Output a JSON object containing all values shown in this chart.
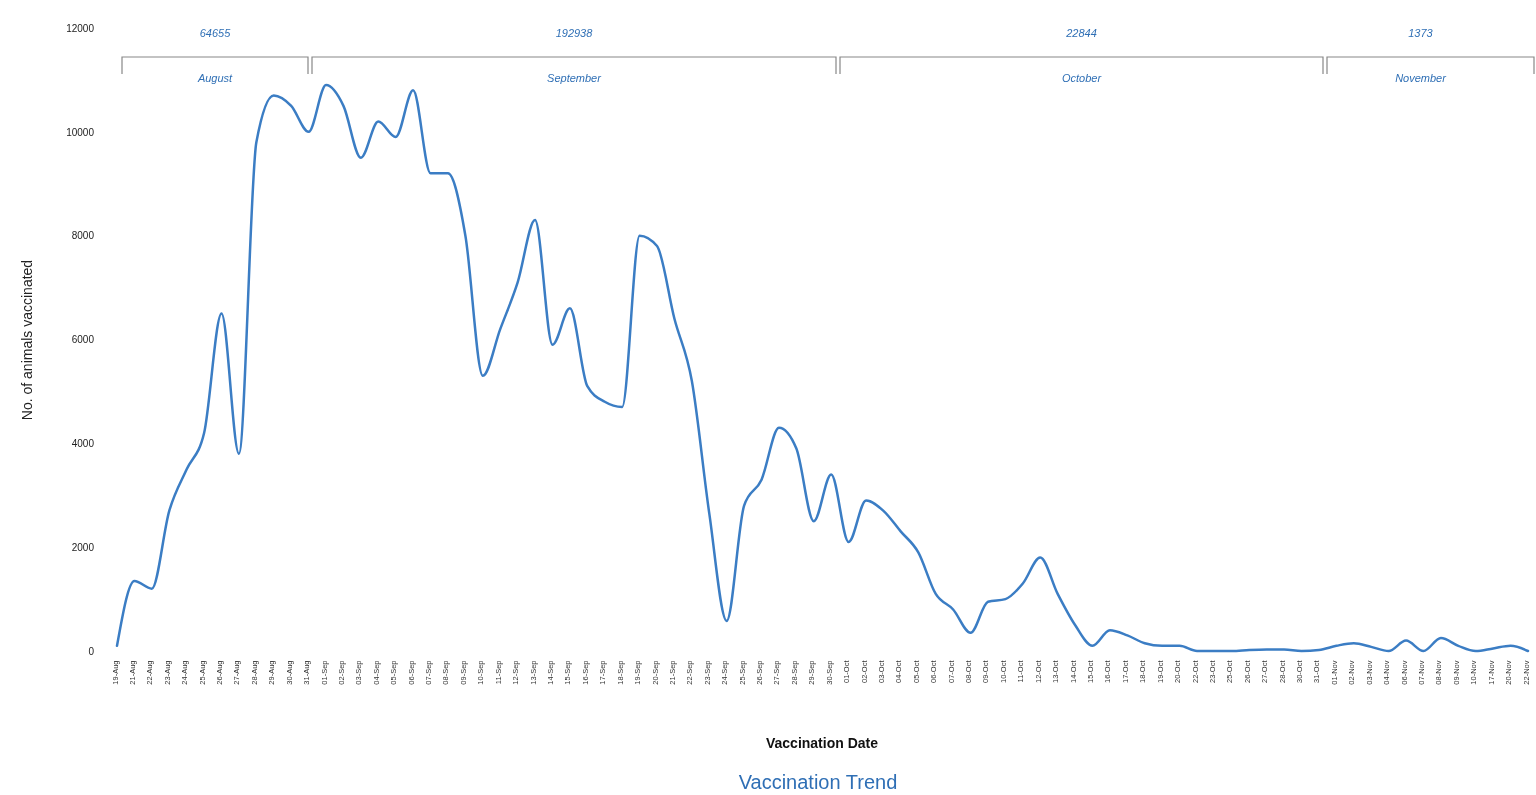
{
  "chart_data": {
    "type": "line",
    "title": "Vaccination Trend",
    "xlabel": "Vaccination Date",
    "ylabel": "No. of animals vaccinated",
    "categories": [
      "19-Aug",
      "21-Aug",
      "22-Aug",
      "23-Aug",
      "24-Aug",
      "25-Aug",
      "26-Aug",
      "27-Aug",
      "28-Aug",
      "29-Aug",
      "30-Aug",
      "31-Aug",
      "01-Sep",
      "02-Sep",
      "03-Sep",
      "04-Sep",
      "05-Sep",
      "06-Sep",
      "07-Sep",
      "08-Sep",
      "09-Sep",
      "10-Sep",
      "11-Sep",
      "12-Sep",
      "13-Sep",
      "14-Sep",
      "15-Sep",
      "16-Sep",
      "17-Sep",
      "18-Sep",
      "19-Sep",
      "20-Sep",
      "21-Sep",
      "22-Sep",
      "23-Sep",
      "24-Sep",
      "25-Sep",
      "26-Sep",
      "27-Sep",
      "28-Sep",
      "29-Sep",
      "30-Sep",
      "01-Oct",
      "02-Oct",
      "03-Oct",
      "04-Oct",
      "05-Oct",
      "06-Oct",
      "07-Oct",
      "08-Oct",
      "09-Oct",
      "10-Oct",
      "11-Oct",
      "12-Oct",
      "13-Oct",
      "14-Oct",
      "15-Oct",
      "16-Oct",
      "17-Oct",
      "18-Oct",
      "19-Oct",
      "20-Oct",
      "22-Oct",
      "23-Oct",
      "25-Oct",
      "26-Oct",
      "27-Oct",
      "28-Oct",
      "30-Oct",
      "31-Oct",
      "01-Nov",
      "02-Nov",
      "03-Nov",
      "04-Nov",
      "06-Nov",
      "07-Nov",
      "08-Nov",
      "09-Nov",
      "10-Nov",
      "17-Nov",
      "20-Nov",
      "22-Nov"
    ],
    "series": [
      {
        "color": "#3b7dc4",
        "values": [
          100,
          1350,
          1200,
          2700,
          3500,
          4200,
          6500,
          3800,
          9800,
          10700,
          10500,
          10000,
          10900,
          10500,
          9500,
          10200,
          9900,
          10800,
          9200,
          9200,
          8000,
          5300,
          6200,
          7100,
          8300,
          5900,
          6600,
          5100,
          4800,
          4700,
          8000,
          7800,
          6400,
          5200,
          2650,
          580,
          2800,
          3300,
          4300,
          3900,
          2500,
          3400,
          2100,
          2900,
          2700,
          2300,
          1900,
          1100,
          800,
          350,
          950,
          1000,
          1300,
          1800,
          1100,
          500,
          100,
          400,
          300,
          150,
          100,
          100,
          0,
          0,
          0,
          20,
          30,
          30,
          0,
          20,
          100,
          150,
          80,
          0,
          200,
          0,
          250,
          100,
          0,
          50,
          100,
          0
        ]
      }
    ],
    "ylim": [
      0,
      12000
    ],
    "yticks": [
      0,
      2000,
      4000,
      6000,
      8000,
      10000,
      12000
    ],
    "annotations": [
      "64655",
      "August",
      "192938",
      "September",
      "22844",
      "October",
      "1373",
      "November"
    ],
    "grid": false,
    "marker": "none",
    "line_style": "solid"
  }
}
